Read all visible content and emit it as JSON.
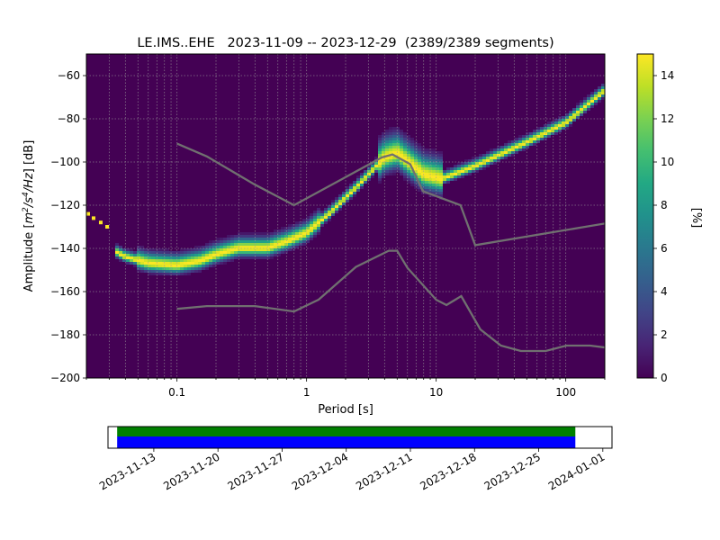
{
  "title": "LE.IMS..EHE   2023-11-09 -- 2023-12-29  (2389/2389 segments)",
  "chart_data": {
    "type": "heatmap",
    "title": "LE.IMS..EHE   2023-11-09 -- 2023-12-29  (2389/2389 segments)",
    "xlabel": "Period [s]",
    "ylabel_prefix": "Amplitude [",
    "ylabel_unit_main": "m",
    "ylabel_unit_sup1": "2",
    "ylabel_unit_mid": "/s",
    "ylabel_unit_sup2": "4",
    "ylabel_unit_end": "/Hz",
    "ylabel_suffix": "] [dB]",
    "x_scale": "log",
    "xlim": [
      0.02,
      200
    ],
    "ylim": [
      -200,
      -50
    ],
    "grid": true,
    "x_ticks": [
      {
        "value": 0.1,
        "label": "0.1"
      },
      {
        "value": 1,
        "label": "1"
      },
      {
        "value": 10,
        "label": "10"
      },
      {
        "value": 100,
        "label": "100"
      }
    ],
    "y_ticks": [
      {
        "value": -60,
        "label": "−60"
      },
      {
        "value": -80,
        "label": "−80"
      },
      {
        "value": -100,
        "label": "−100"
      },
      {
        "value": -120,
        "label": "−120"
      },
      {
        "value": -140,
        "label": "−140"
      },
      {
        "value": -160,
        "label": "−160"
      },
      {
        "value": -180,
        "label": "−180"
      },
      {
        "value": -200,
        "label": "−200"
      }
    ],
    "colorbar": {
      "label": "[%]",
      "range": [
        0,
        15
      ],
      "colormap": "viridis",
      "ticks": [
        {
          "value": 0,
          "label": "0"
        },
        {
          "value": 2,
          "label": "2"
        },
        {
          "value": 4,
          "label": "4"
        },
        {
          "value": 6,
          "label": "6"
        },
        {
          "value": 8,
          "label": "8"
        },
        {
          "value": 10,
          "label": "10"
        },
        {
          "value": 12,
          "label": "12"
        },
        {
          "value": 14,
          "label": "14"
        }
      ]
    },
    "mode_curve": [
      {
        "period": 0.02,
        "db": -124
      },
      {
        "period": 0.025,
        "db": -127
      },
      {
        "period": 0.03,
        "db": -130
      },
      {
        "period": 0.032,
        "db": -141
      },
      {
        "period": 0.04,
        "db": -144
      },
      {
        "period": 0.06,
        "db": -147
      },
      {
        "period": 0.1,
        "db": -148
      },
      {
        "period": 0.15,
        "db": -146
      },
      {
        "period": 0.2,
        "db": -143
      },
      {
        "period": 0.3,
        "db": -140
      },
      {
        "period": 0.5,
        "db": -140
      },
      {
        "period": 0.7,
        "db": -137
      },
      {
        "period": 1.0,
        "db": -133
      },
      {
        "period": 1.5,
        "db": -124
      },
      {
        "period": 2.5,
        "db": -111
      },
      {
        "period": 4.0,
        "db": -98
      },
      {
        "period": 5.0,
        "db": -96
      },
      {
        "period": 8.0,
        "db": -106
      },
      {
        "period": 11.0,
        "db": -108
      },
      {
        "period": 20.0,
        "db": -102
      },
      {
        "period": 50.0,
        "db": -91
      },
      {
        "period": 100.0,
        "db": -82
      },
      {
        "period": 200.0,
        "db": -67
      }
    ],
    "noise_models": [
      {
        "name": "",
        "points": [
          {
            "period": 0.1,
            "db": -91.5
          },
          {
            "period": 0.17,
            "db": -97.4
          },
          {
            "period": 0.4,
            "db": -110.5
          },
          {
            "period": 0.8,
            "db": -120
          },
          {
            "period": 3.8,
            "db": -97.9
          },
          {
            "period": 4.6,
            "db": -96.5
          },
          {
            "period": 6.3,
            "db": -101
          },
          {
            "period": 7.9,
            "db": -113.5
          },
          {
            "period": 15.4,
            "db": -120
          },
          {
            "period": 20,
            "db": -138.5
          },
          {
            "period": 354.8,
            "db": -126
          }
        ]
      },
      {
        "name": "",
        "points": [
          {
            "period": 0.1,
            "db": -168
          },
          {
            "period": 0.17,
            "db": -166.7
          },
          {
            "period": 0.4,
            "db": -166.7
          },
          {
            "period": 0.8,
            "db": -169.2
          },
          {
            "period": 1.24,
            "db": -163.7
          },
          {
            "period": 2.4,
            "db": -148.6
          },
          {
            "period": 4.3,
            "db": -141.1
          },
          {
            "period": 5.0,
            "db": -141.1
          },
          {
            "period": 6.0,
            "db": -149
          },
          {
            "period": 10,
            "db": -163.8
          },
          {
            "period": 12,
            "db": -166.2
          },
          {
            "period": 15.6,
            "db": -162.1
          },
          {
            "period": 21.9,
            "db": -177.5
          },
          {
            "period": 31.6,
            "db": -185
          },
          {
            "period": 45,
            "db": -187.5
          },
          {
            "period": 70,
            "db": -187.5
          },
          {
            "period": 101,
            "db": -185
          },
          {
            "period": 154,
            "db": -185
          },
          {
            "period": 328,
            "db": -187.5
          }
        ]
      }
    ]
  },
  "timeline": {
    "colors": {
      "coverage": "#008000",
      "data": "#0000ff"
    },
    "date_start": "2023-11-08",
    "date_end": "2024-01-02",
    "coverage_start": "2023-11-09",
    "coverage_end": "2023-12-29",
    "ticks": [
      {
        "date": "2023-11-13",
        "label": "2023-11-13"
      },
      {
        "date": "2023-11-20",
        "label": "2023-11-20"
      },
      {
        "date": "2023-11-27",
        "label": "2023-11-27"
      },
      {
        "date": "2023-12-04",
        "label": "2023-12-04"
      },
      {
        "date": "2023-12-11",
        "label": "2023-12-11"
      },
      {
        "date": "2023-12-18",
        "label": "2023-12-18"
      },
      {
        "date": "2023-12-25",
        "label": "2023-12-25"
      },
      {
        "date": "2024-01-01",
        "label": "2024-01-01"
      }
    ]
  }
}
